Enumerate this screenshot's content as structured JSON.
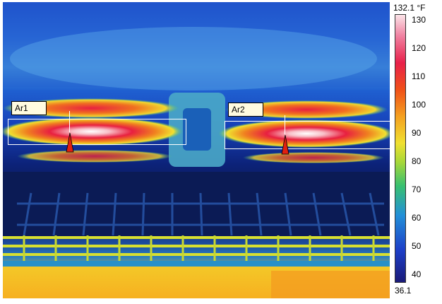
{
  "image": {
    "alt": "Thermal camera image of a heated rack assembly with two measurement areas"
  },
  "rois": [
    {
      "label": "Ar1"
    },
    {
      "label": "Ar2"
    }
  ],
  "scale": {
    "max": "132.1 °F",
    "min": "36.1",
    "ticks": [
      "130",
      "120",
      "110",
      "100",
      "90",
      "80",
      "70",
      "60",
      "50",
      "40"
    ]
  }
}
